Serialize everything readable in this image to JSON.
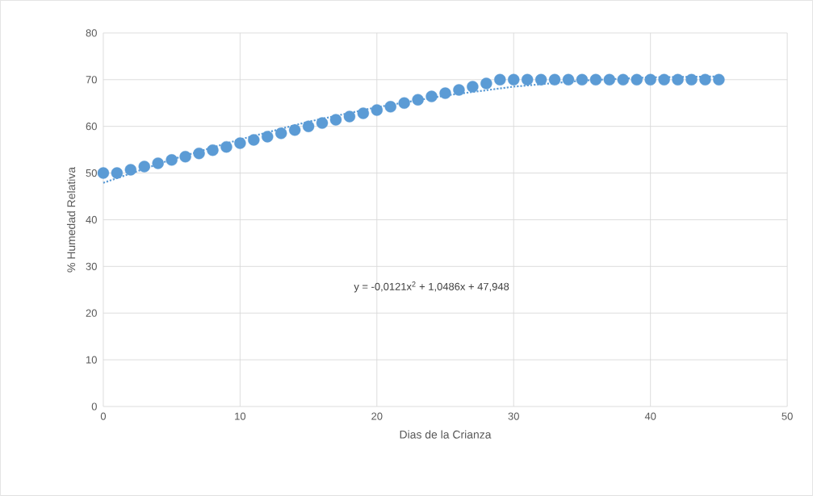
{
  "chart_data": {
    "type": "scatter",
    "xlabel": "Dias de la Crianza",
    "ylabel": "% Humedad Relativa",
    "xlim": [
      0,
      50
    ],
    "xticks": [
      0,
      10,
      20,
      30,
      40,
      50
    ],
    "ylim": [
      0,
      80
    ],
    "yticks": [
      0,
      10,
      20,
      30,
      40,
      50,
      60,
      70,
      80
    ],
    "grid": true,
    "annotations": [
      "y = -0,0121x$^{2}$ + 1,0486x + 47,948"
    ],
    "series": [
      {
        "marker": "circle",
        "color": "#5b9bd5",
        "x": [
          0,
          1,
          2,
          3,
          4,
          5,
          6,
          7,
          8,
          9,
          10,
          11,
          12,
          13,
          14,
          15,
          16,
          17,
          18,
          19,
          20,
          21,
          22,
          23,
          24,
          25,
          26,
          27,
          28,
          29,
          30,
          31,
          32,
          33,
          34,
          35,
          36,
          37,
          38,
          39,
          40,
          41,
          42,
          43,
          44,
          45
        ],
        "values": [
          50,
          50,
          50.7,
          51.4,
          52.1,
          52.8,
          53.5,
          54.2,
          54.9,
          55.6,
          56.4,
          57.1,
          57.8,
          58.5,
          59.2,
          60,
          60.7,
          61.4,
          62.1,
          62.8,
          63.5,
          64.2,
          65,
          65.7,
          66.4,
          67.1,
          67.8,
          68.5,
          69.2,
          70,
          70,
          70,
          70,
          70,
          70,
          70,
          70,
          70,
          70,
          70,
          70,
          70,
          70,
          70,
          70,
          70
        ]
      },
      {
        "type": "line",
        "color": "#5b9bd5",
        "line_style": "dotted",
        "marker": "none",
        "x": [
          0,
          5,
          10,
          15,
          20,
          25,
          30,
          35,
          40,
          45
        ],
        "values": [
          47.9,
          52.9,
          57.2,
          61.0,
          64.1,
          66.6,
          68.5,
          69.8,
          70.5,
          70.7
        ]
      }
    ]
  }
}
